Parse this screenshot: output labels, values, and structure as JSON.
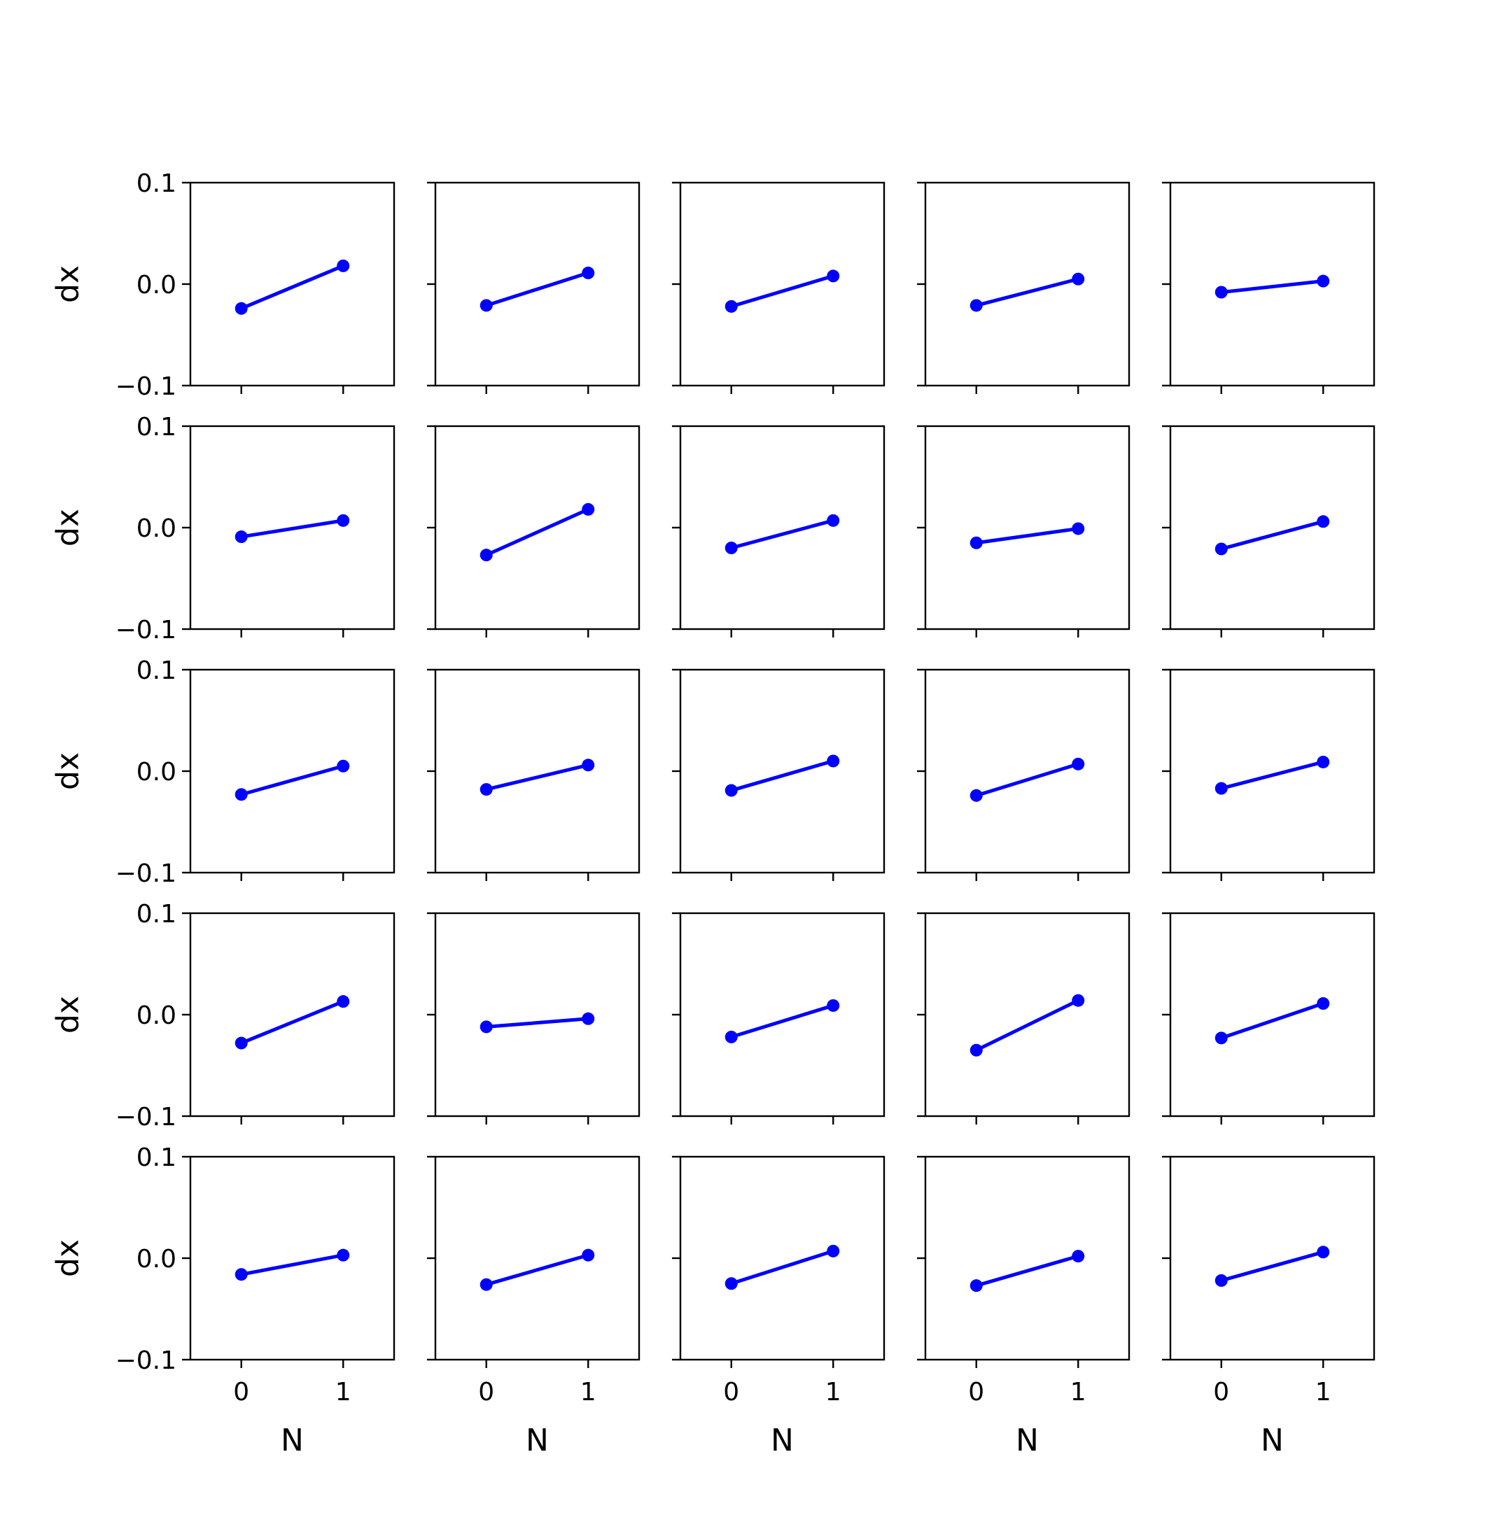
{
  "figure": {
    "rows": 5,
    "cols": 5,
    "line_color": "#0000ff",
    "axes_color": "#000000",
    "background": "#ffffff"
  },
  "chart_data": [
    {
      "type": "line",
      "row": 0,
      "col": 0,
      "x": [
        0,
        1
      ],
      "y": [
        -0.024,
        0.018
      ],
      "xlim": [
        -0.5,
        1.5
      ],
      "ylim": [
        -0.1,
        0.1
      ],
      "xticks": [
        "0",
        "1"
      ],
      "yticks": [
        "0.1",
        "0.0",
        "−0.1"
      ],
      "xlabel": "",
      "ylabel": "dx",
      "grid": false
    },
    {
      "type": "line",
      "row": 0,
      "col": 1,
      "x": [
        0,
        1
      ],
      "y": [
        -0.021,
        0.011
      ],
      "xlim": [
        -0.5,
        1.5
      ],
      "ylim": [
        -0.1,
        0.1
      ],
      "xticks": [
        "0",
        "1"
      ],
      "yticks": [
        "0.1",
        "0.0",
        "−0.1"
      ],
      "xlabel": "",
      "ylabel": "",
      "grid": false
    },
    {
      "type": "line",
      "row": 0,
      "col": 2,
      "x": [
        0,
        1
      ],
      "y": [
        -0.022,
        0.008
      ],
      "xlim": [
        -0.5,
        1.5
      ],
      "ylim": [
        -0.1,
        0.1
      ],
      "xticks": [
        "0",
        "1"
      ],
      "yticks": [
        "0.1",
        "0.0",
        "−0.1"
      ],
      "xlabel": "",
      "ylabel": "",
      "grid": false
    },
    {
      "type": "line",
      "row": 0,
      "col": 3,
      "x": [
        0,
        1
      ],
      "y": [
        -0.021,
        0.005
      ],
      "xlim": [
        -0.5,
        1.5
      ],
      "ylim": [
        -0.1,
        0.1
      ],
      "xticks": [
        "0",
        "1"
      ],
      "yticks": [
        "0.1",
        "0.0",
        "−0.1"
      ],
      "xlabel": "",
      "ylabel": "",
      "grid": false
    },
    {
      "type": "line",
      "row": 0,
      "col": 4,
      "x": [
        0,
        1
      ],
      "y": [
        -0.008,
        0.003
      ],
      "xlim": [
        -0.5,
        1.5
      ],
      "ylim": [
        -0.1,
        0.1
      ],
      "xticks": [
        "0",
        "1"
      ],
      "yticks": [
        "0.1",
        "0.0",
        "−0.1"
      ],
      "xlabel": "",
      "ylabel": "",
      "grid": false
    },
    {
      "type": "line",
      "row": 1,
      "col": 0,
      "x": [
        0,
        1
      ],
      "y": [
        -0.009,
        0.007
      ],
      "xlim": [
        -0.5,
        1.5
      ],
      "ylim": [
        -0.1,
        0.1
      ],
      "xticks": [
        "0",
        "1"
      ],
      "yticks": [
        "0.1",
        "0.0",
        "−0.1"
      ],
      "xlabel": "",
      "ylabel": "dx",
      "grid": false
    },
    {
      "type": "line",
      "row": 1,
      "col": 1,
      "x": [
        0,
        1
      ],
      "y": [
        -0.027,
        0.018
      ],
      "xlim": [
        -0.5,
        1.5
      ],
      "ylim": [
        -0.1,
        0.1
      ],
      "xticks": [
        "0",
        "1"
      ],
      "yticks": [
        "0.1",
        "0.0",
        "−0.1"
      ],
      "xlabel": "",
      "ylabel": "",
      "grid": false
    },
    {
      "type": "line",
      "row": 1,
      "col": 2,
      "x": [
        0,
        1
      ],
      "y": [
        -0.02,
        0.007
      ],
      "xlim": [
        -0.5,
        1.5
      ],
      "ylim": [
        -0.1,
        0.1
      ],
      "xticks": [
        "0",
        "1"
      ],
      "yticks": [
        "0.1",
        "0.0",
        "−0.1"
      ],
      "xlabel": "",
      "ylabel": "",
      "grid": false
    },
    {
      "type": "line",
      "row": 1,
      "col": 3,
      "x": [
        0,
        1
      ],
      "y": [
        -0.015,
        -0.001
      ],
      "xlim": [
        -0.5,
        1.5
      ],
      "ylim": [
        -0.1,
        0.1
      ],
      "xticks": [
        "0",
        "1"
      ],
      "yticks": [
        "0.1",
        "0.0",
        "−0.1"
      ],
      "xlabel": "",
      "ylabel": "",
      "grid": false
    },
    {
      "type": "line",
      "row": 1,
      "col": 4,
      "x": [
        0,
        1
      ],
      "y": [
        -0.021,
        0.006
      ],
      "xlim": [
        -0.5,
        1.5
      ],
      "ylim": [
        -0.1,
        0.1
      ],
      "xticks": [
        "0",
        "1"
      ],
      "yticks": [
        "0.1",
        "0.0",
        "−0.1"
      ],
      "xlabel": "",
      "ylabel": "",
      "grid": false
    },
    {
      "type": "line",
      "row": 2,
      "col": 0,
      "x": [
        0,
        1
      ],
      "y": [
        -0.023,
        0.005
      ],
      "xlim": [
        -0.5,
        1.5
      ],
      "ylim": [
        -0.1,
        0.1
      ],
      "xticks": [
        "0",
        "1"
      ],
      "yticks": [
        "0.1",
        "0.0",
        "−0.1"
      ],
      "xlabel": "",
      "ylabel": "dx",
      "grid": false
    },
    {
      "type": "line",
      "row": 2,
      "col": 1,
      "x": [
        0,
        1
      ],
      "y": [
        -0.018,
        0.006
      ],
      "xlim": [
        -0.5,
        1.5
      ],
      "ylim": [
        -0.1,
        0.1
      ],
      "xticks": [
        "0",
        "1"
      ],
      "yticks": [
        "0.1",
        "0.0",
        "−0.1"
      ],
      "xlabel": "",
      "ylabel": "",
      "grid": false
    },
    {
      "type": "line",
      "row": 2,
      "col": 2,
      "x": [
        0,
        1
      ],
      "y": [
        -0.019,
        0.01
      ],
      "xlim": [
        -0.5,
        1.5
      ],
      "ylim": [
        -0.1,
        0.1
      ],
      "xticks": [
        "0",
        "1"
      ],
      "yticks": [
        "0.1",
        "0.0",
        "−0.1"
      ],
      "xlabel": "",
      "ylabel": "",
      "grid": false
    },
    {
      "type": "line",
      "row": 2,
      "col": 3,
      "x": [
        0,
        1
      ],
      "y": [
        -0.024,
        0.007
      ],
      "xlim": [
        -0.5,
        1.5
      ],
      "ylim": [
        -0.1,
        0.1
      ],
      "xticks": [
        "0",
        "1"
      ],
      "yticks": [
        "0.1",
        "0.0",
        "−0.1"
      ],
      "xlabel": "",
      "ylabel": "",
      "grid": false
    },
    {
      "type": "line",
      "row": 2,
      "col": 4,
      "x": [
        0,
        1
      ],
      "y": [
        -0.017,
        0.009
      ],
      "xlim": [
        -0.5,
        1.5
      ],
      "ylim": [
        -0.1,
        0.1
      ],
      "xticks": [
        "0",
        "1"
      ],
      "yticks": [
        "0.1",
        "0.0",
        "−0.1"
      ],
      "xlabel": "",
      "ylabel": "",
      "grid": false
    },
    {
      "type": "line",
      "row": 3,
      "col": 0,
      "x": [
        0,
        1
      ],
      "y": [
        -0.028,
        0.013
      ],
      "xlim": [
        -0.5,
        1.5
      ],
      "ylim": [
        -0.1,
        0.1
      ],
      "xticks": [
        "0",
        "1"
      ],
      "yticks": [
        "0.1",
        "0.0",
        "−0.1"
      ],
      "xlabel": "",
      "ylabel": "dx",
      "grid": false
    },
    {
      "type": "line",
      "row": 3,
      "col": 1,
      "x": [
        0,
        1
      ],
      "y": [
        -0.012,
        -0.004
      ],
      "xlim": [
        -0.5,
        1.5
      ],
      "ylim": [
        -0.1,
        0.1
      ],
      "xticks": [
        "0",
        "1"
      ],
      "yticks": [
        "0.1",
        "0.0",
        "−0.1"
      ],
      "xlabel": "",
      "ylabel": "",
      "grid": false
    },
    {
      "type": "line",
      "row": 3,
      "col": 2,
      "x": [
        0,
        1
      ],
      "y": [
        -0.022,
        0.009
      ],
      "xlim": [
        -0.5,
        1.5
      ],
      "ylim": [
        -0.1,
        0.1
      ],
      "xticks": [
        "0",
        "1"
      ],
      "yticks": [
        "0.1",
        "0.0",
        "−0.1"
      ],
      "xlabel": "",
      "ylabel": "",
      "grid": false
    },
    {
      "type": "line",
      "row": 3,
      "col": 3,
      "x": [
        0,
        1
      ],
      "y": [
        -0.035,
        0.014
      ],
      "xlim": [
        -0.5,
        1.5
      ],
      "ylim": [
        -0.1,
        0.1
      ],
      "xticks": [
        "0",
        "1"
      ],
      "yticks": [
        "0.1",
        "0.0",
        "−0.1"
      ],
      "xlabel": "",
      "ylabel": "",
      "grid": false
    },
    {
      "type": "line",
      "row": 3,
      "col": 4,
      "x": [
        0,
        1
      ],
      "y": [
        -0.023,
        0.011
      ],
      "xlim": [
        -0.5,
        1.5
      ],
      "ylim": [
        -0.1,
        0.1
      ],
      "xticks": [
        "0",
        "1"
      ],
      "yticks": [
        "0.1",
        "0.0",
        "−0.1"
      ],
      "xlabel": "",
      "ylabel": "",
      "grid": false
    },
    {
      "type": "line",
      "row": 4,
      "col": 0,
      "x": [
        0,
        1
      ],
      "y": [
        -0.016,
        0.003
      ],
      "xlim": [
        -0.5,
        1.5
      ],
      "ylim": [
        -0.1,
        0.1
      ],
      "xticks": [
        "0",
        "1"
      ],
      "yticks": [
        "0.1",
        "0.0",
        "−0.1"
      ],
      "xlabel": "N",
      "ylabel": "dx",
      "grid": false
    },
    {
      "type": "line",
      "row": 4,
      "col": 1,
      "x": [
        0,
        1
      ],
      "y": [
        -0.026,
        0.003
      ],
      "xlim": [
        -0.5,
        1.5
      ],
      "ylim": [
        -0.1,
        0.1
      ],
      "xticks": [
        "0",
        "1"
      ],
      "yticks": [
        "0.1",
        "0.0",
        "−0.1"
      ],
      "xlabel": "N",
      "ylabel": "",
      "grid": false
    },
    {
      "type": "line",
      "row": 4,
      "col": 2,
      "x": [
        0,
        1
      ],
      "y": [
        -0.025,
        0.007
      ],
      "xlim": [
        -0.5,
        1.5
      ],
      "ylim": [
        -0.1,
        0.1
      ],
      "xticks": [
        "0",
        "1"
      ],
      "yticks": [
        "0.1",
        "0.0",
        "−0.1"
      ],
      "xlabel": "N",
      "ylabel": "",
      "grid": false
    },
    {
      "type": "line",
      "row": 4,
      "col": 3,
      "x": [
        0,
        1
      ],
      "y": [
        -0.027,
        0.002
      ],
      "xlim": [
        -0.5,
        1.5
      ],
      "ylim": [
        -0.1,
        0.1
      ],
      "xticks": [
        "0",
        "1"
      ],
      "yticks": [
        "0.1",
        "0.0",
        "−0.1"
      ],
      "xlabel": "N",
      "ylabel": "",
      "grid": false
    },
    {
      "type": "line",
      "row": 4,
      "col": 4,
      "x": [
        0,
        1
      ],
      "y": [
        -0.022,
        0.006
      ],
      "xlim": [
        -0.5,
        1.5
      ],
      "ylim": [
        -0.1,
        0.1
      ],
      "xticks": [
        "0",
        "1"
      ],
      "yticks": [
        "0.1",
        "0.0",
        "−0.1"
      ],
      "xlabel": "N",
      "ylabel": "",
      "grid": false
    }
  ]
}
